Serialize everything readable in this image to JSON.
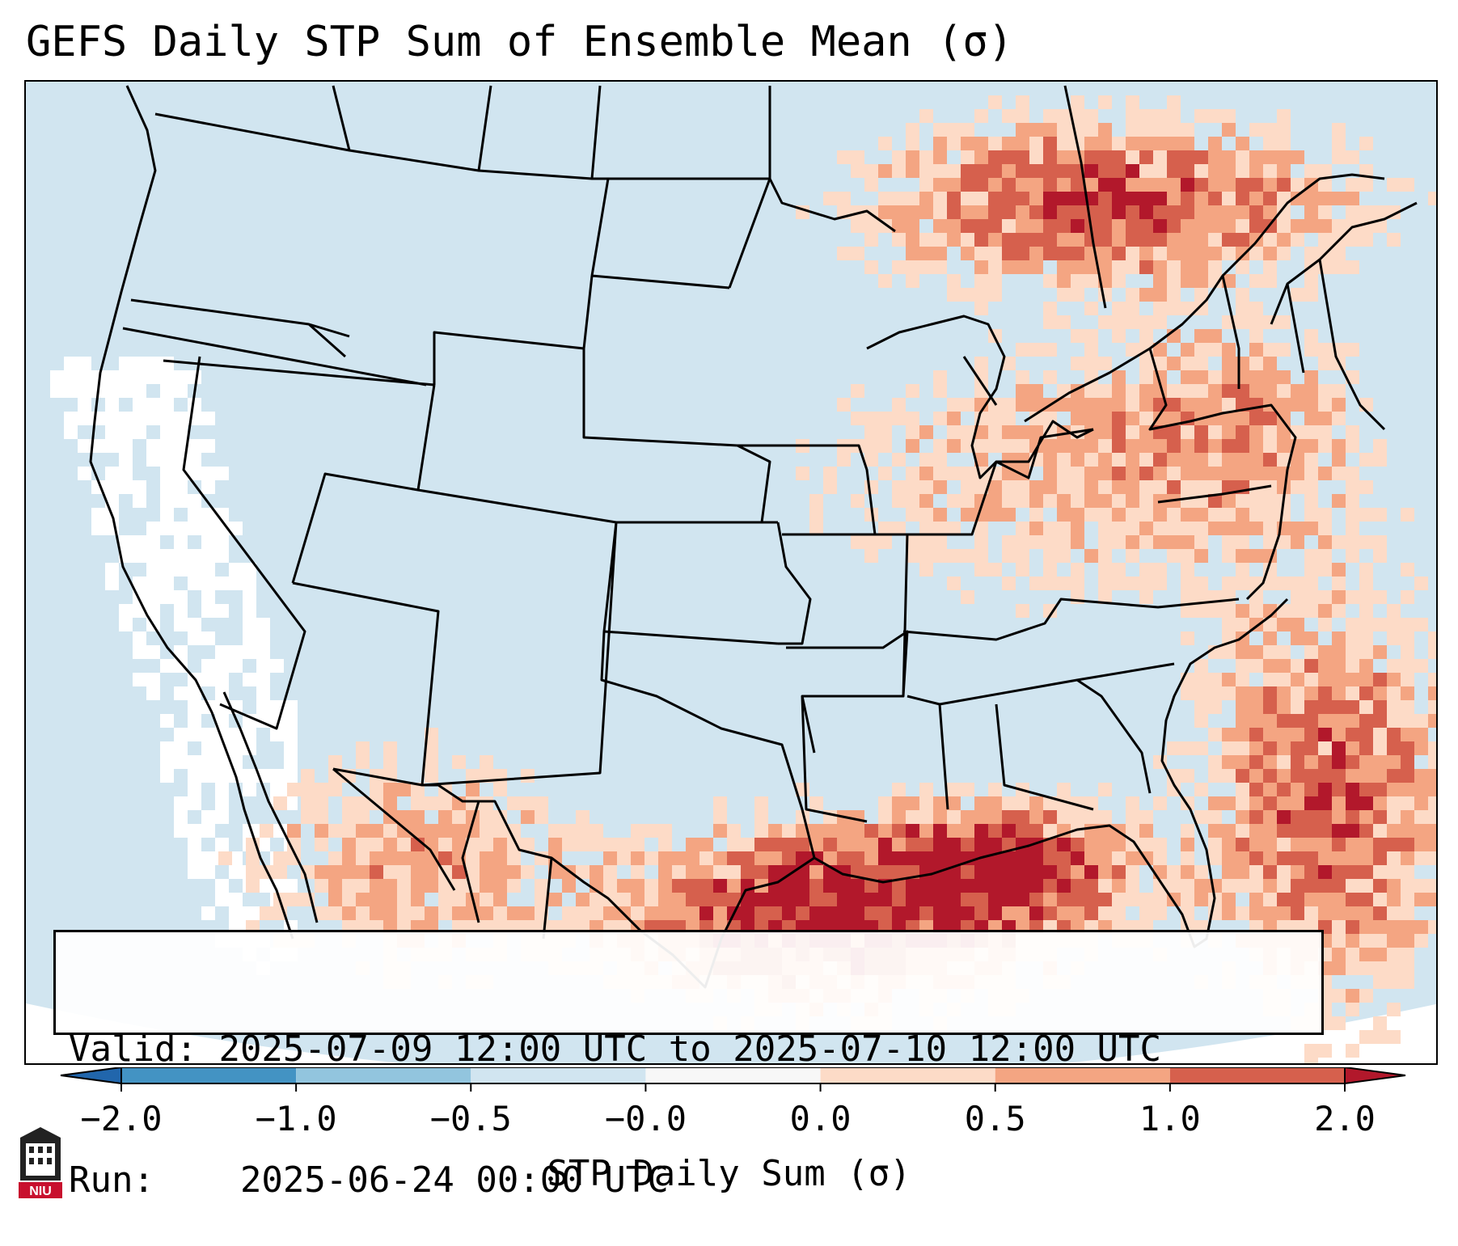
{
  "title": "GEFS Daily STP Sum of Ensemble Mean (σ)",
  "info": {
    "valid_label": "Valid:",
    "valid_value": "2025-07-09 12:00 UTC to 2025-07-10 12:00 UTC",
    "run_label": "Run:",
    "run_value": "2025-06-24 00:00 UTC"
  },
  "colorbar": {
    "label": "STP Daily Sum (σ)",
    "ticks": [
      "−2.0",
      "−1.0",
      "−0.5",
      "−0.0",
      "0.0",
      "0.5",
      "1.0",
      "2.0"
    ],
    "bins": [
      {
        "range": "-2.0 to -1.0",
        "color": "#4393c3"
      },
      {
        "range": "-1.0 to -0.5",
        "color": "#92c5de"
      },
      {
        "range": "-0.5 to -0.0",
        "color": "#d1e5f0"
      },
      {
        "range": "-0.0 to 0.0",
        "color": "#f7f7f7"
      },
      {
        "range": "0.0 to 0.5",
        "color": "#fddbc7"
      },
      {
        "range": "0.5 to 1.0",
        "color": "#f4a582"
      },
      {
        "range": "1.0 to 2.0",
        "color": "#d6604d"
      }
    ],
    "extend_low_color": "#2166ac",
    "extend_high_color": "#b2182b"
  },
  "map": {
    "region": "Continental United States, southern Canada, northern Mexico, Gulf of Mexico",
    "background_color": "#d1e5f0",
    "outside_projection_color": "#ffffff",
    "border_color": "#000000"
  },
  "logo": {
    "text": "NIU",
    "icon": "university-building-icon"
  }
}
